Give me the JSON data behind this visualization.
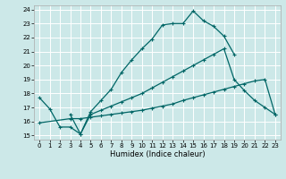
{
  "bg_color": "#cce8e8",
  "grid_color": "#ffffff",
  "line_color": "#006666",
  "xlabel": "Humidex (Indice chaleur)",
  "xlim": [
    -0.5,
    23.5
  ],
  "ylim": [
    14.7,
    24.3
  ],
  "xticks": [
    0,
    1,
    2,
    3,
    4,
    5,
    6,
    7,
    8,
    9,
    10,
    11,
    12,
    13,
    14,
    15,
    16,
    17,
    18,
    19,
    20,
    21,
    22,
    23
  ],
  "yticks": [
    15,
    16,
    17,
    18,
    19,
    20,
    21,
    22,
    23,
    24
  ],
  "curve1": {
    "x": [
      0,
      1,
      2,
      3,
      4,
      5,
      6,
      7,
      8,
      9,
      10,
      11,
      12,
      13,
      14,
      15,
      16,
      17,
      18,
      19
    ],
    "y": [
      17.7,
      16.9,
      15.6,
      15.6,
      15.1,
      16.7,
      17.5,
      18.3,
      19.5,
      20.4,
      21.2,
      21.9,
      22.9,
      23.0,
      23.0,
      23.9,
      23.2,
      22.8,
      22.1,
      20.8
    ]
  },
  "curve2": {
    "x": [
      0,
      3,
      4,
      5,
      6,
      7,
      8,
      9,
      10,
      11,
      12,
      13,
      14,
      15,
      16,
      17,
      18,
      19,
      20,
      21,
      22,
      23
    ],
    "y": [
      15.9,
      16.2,
      16.2,
      16.3,
      16.4,
      16.5,
      16.6,
      16.7,
      16.8,
      16.95,
      17.1,
      17.25,
      17.5,
      17.7,
      17.9,
      18.1,
      18.3,
      18.5,
      18.7,
      18.9,
      19.0,
      16.5
    ]
  },
  "curve3": {
    "x": [
      3,
      4,
      5,
      6,
      7,
      8,
      9,
      10,
      11,
      12,
      13,
      14,
      15,
      16,
      17,
      18,
      19,
      20,
      21,
      22,
      23
    ],
    "y": [
      16.5,
      15.1,
      16.5,
      16.8,
      17.1,
      17.4,
      17.7,
      18.0,
      18.4,
      18.8,
      19.2,
      19.6,
      20.0,
      20.4,
      20.8,
      21.2,
      19.0,
      18.2,
      17.5,
      17.0,
      16.5
    ]
  }
}
